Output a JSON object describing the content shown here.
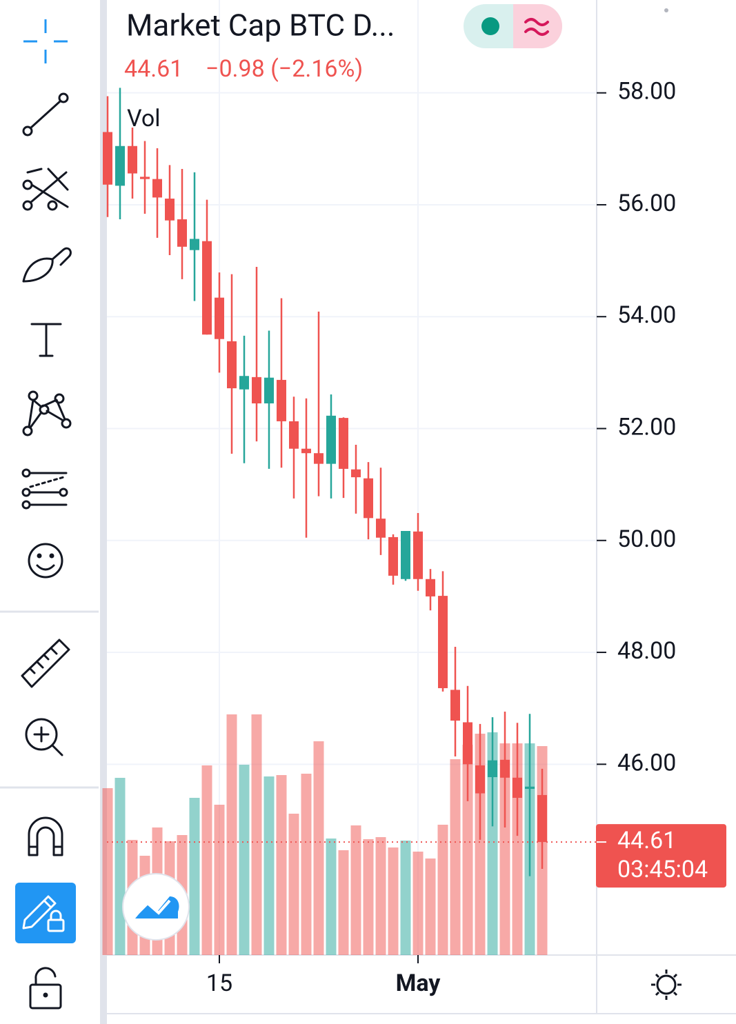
{
  "chart_data": {
    "type": "candlestick",
    "title": "Market Cap BTC D...",
    "last_price": 44.61,
    "change": "−0.98 (−2.16%)",
    "countdown": "03:45:04",
    "volume_label": "Vol",
    "categories": [
      null,
      null,
      null,
      null,
      null,
      null,
      null,
      null,
      null,
      "15",
      null,
      null,
      null,
      null,
      null,
      null,
      null,
      null,
      null,
      null,
      null,
      null,
      null,
      null,
      null,
      "May",
      null,
      null,
      null,
      null,
      null,
      null,
      null,
      null,
      null,
      null
    ],
    "open": [
      57.3,
      56.34,
      57.05,
      56.5,
      56.46,
      56.11,
      55.74,
      55.19,
      55.35,
      54.34,
      53.56,
      52.7,
      52.92,
      52.45,
      52.87,
      52.13,
      51.64,
      51.56,
      51.37,
      52.19,
      51.27,
      51.11,
      50.39,
      50.06,
      49.31,
      50.16,
      49.31,
      49.01,
      47.33,
      46.75,
      45.98,
      45.77,
      46.08,
      45.76,
      45.56,
      45.45
    ],
    "high": [
      57.94,
      58.09,
      57.38,
      57.14,
      57.01,
      56.71,
      56.64,
      56.58,
      56.09,
      54.79,
      54.76,
      53.66,
      54.89,
      53.75,
      54.33,
      52.57,
      52.54,
      54.09,
      52.61,
      52.2,
      51.71,
      51.4,
      51.3,
      50.11,
      50.17,
      50.49,
      49.49,
      49.45,
      48.1,
      47.4,
      46.72,
      46.84,
      46.94,
      46.74,
      46.9,
      45.92
    ],
    "low": [
      55.78,
      55.74,
      56.11,
      55.84,
      55.41,
      55.1,
      54.67,
      54.28,
      53.68,
      53.0,
      51.55,
      51.38,
      51.77,
      51.28,
      51.3,
      50.75,
      50.05,
      50.79,
      50.75,
      50.76,
      50.48,
      50.02,
      49.74,
      49.21,
      49.28,
      49.1,
      48.75,
      47.3,
      46.14,
      45.34,
      44.65,
      44.89,
      44.87,
      44.72,
      44.0,
      44.13
    ],
    "close": [
      56.36,
      57.05,
      56.56,
      56.46,
      56.13,
      55.72,
      55.25,
      55.39,
      53.68,
      53.6,
      52.72,
      52.94,
      52.45,
      52.91,
      52.13,
      51.64,
      51.56,
      51.37,
      52.23,
      51.28,
      51.13,
      50.4,
      50.05,
      49.37,
      50.17,
      49.31,
      49.0,
      47.36,
      46.78,
      46.0,
      45.48,
      46.07,
      45.76,
      45.4,
      45.6,
      44.61
    ],
    "volume": [
      242,
      257,
      167,
      144,
      185,
      165,
      174,
      228,
      275,
      218,
      349,
      276,
      349,
      259,
      261,
      205,
      263,
      310,
      169,
      152,
      188,
      168,
      171,
      156,
      166,
      150,
      140,
      189,
      284,
      305,
      321,
      323,
      307,
      307,
      307,
      303
    ],
    "up_color": "#26a69a",
    "down_color": "#ef5350",
    "ylim": [
      42.59,
      59.66
    ],
    "yticks": [
      {
        "value": 58,
        "label": "58.00"
      },
      {
        "value": 56,
        "label": "56.00"
      },
      {
        "value": 54,
        "label": "54.00"
      },
      {
        "value": 52,
        "label": "52.00"
      },
      {
        "value": 50,
        "label": "50.00"
      },
      {
        "value": 48,
        "label": "48.00"
      },
      {
        "value": 46,
        "label": "46.00"
      }
    ],
    "grid": true
  }
}
